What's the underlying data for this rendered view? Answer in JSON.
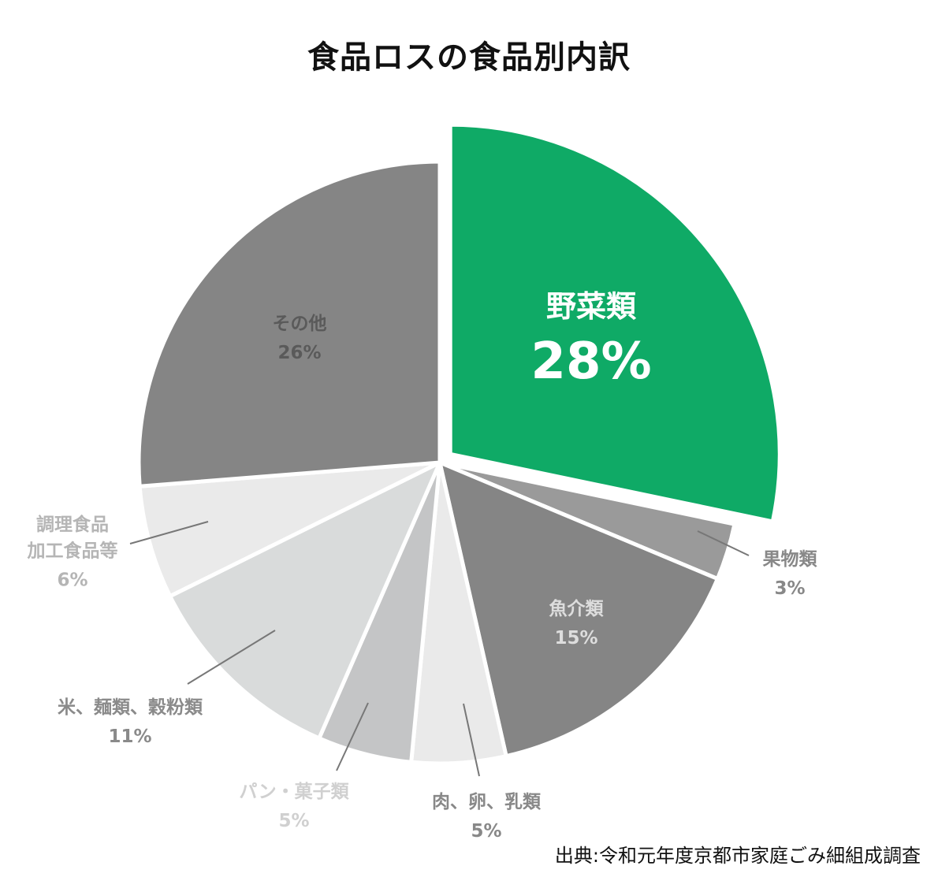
{
  "chart_data": {
    "type": "pie",
    "title": "食品ロスの食品別内訳",
    "source": "出典:令和元年度京都市家庭ごみ細組成調査",
    "start_angle_deg": 0,
    "direction": "clockwise",
    "slices": [
      {
        "lines": [
          "野菜類"
        ],
        "value": 28,
        "value_label": "28%",
        "color": "#0faa66",
        "text_color": "#ffffff",
        "exploded": true,
        "label_mode": "inside-large"
      },
      {
        "lines": [
          "果物類"
        ],
        "value": 3,
        "value_label": "3%",
        "color": "#9a9a9a",
        "text_color": "#888888",
        "exploded": false,
        "label_mode": "outside"
      },
      {
        "lines": [
          "魚介類"
        ],
        "value": 15,
        "value_label": "15%",
        "color": "#858585",
        "text_color": "#dddddd",
        "exploded": false,
        "label_mode": "inside"
      },
      {
        "lines": [
          "肉、卵、乳類"
        ],
        "value": 5,
        "value_label": "5%",
        "color": "#eaeaea",
        "text_color": "#888888",
        "exploded": false,
        "label_mode": "outside"
      },
      {
        "lines": [
          "パン・菓子類"
        ],
        "value": 5,
        "value_label": "5%",
        "color": "#c4c5c6",
        "text_color": "#d0d0d0",
        "exploded": false,
        "label_mode": "outside"
      },
      {
        "lines": [
          "米、麺類、穀粉類"
        ],
        "value": 11,
        "value_label": "11%",
        "color": "#d9dbdb",
        "text_color": "#8a8a8a",
        "exploded": false,
        "label_mode": "outside"
      },
      {
        "lines": [
          "調理食品",
          "加工食品等"
        ],
        "value": 6,
        "value_label": "6%",
        "color": "#eaeaea",
        "text_color": "#b5b5b5",
        "exploded": false,
        "label_mode": "outside"
      },
      {
        "lines": [
          "その他"
        ],
        "value": 26,
        "value_label": "26%",
        "color": "#858585",
        "text_color": "#5a5a5a",
        "exploded": false,
        "label_mode": "inside"
      }
    ]
  }
}
